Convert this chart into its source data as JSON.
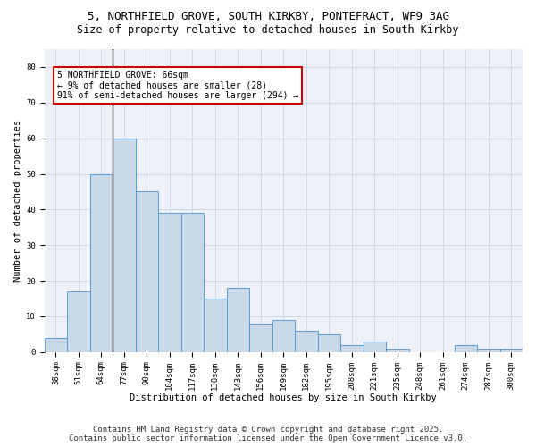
{
  "title1": "5, NORTHFIELD GROVE, SOUTH KIRKBY, PONTEFRACT, WF9 3AG",
  "title2": "Size of property relative to detached houses in South Kirkby",
  "xlabel": "Distribution of detached houses by size in South Kirkby",
  "ylabel": "Number of detached properties",
  "categories": [
    "38sqm",
    "51sqm",
    "64sqm",
    "77sqm",
    "90sqm",
    "104sqm",
    "117sqm",
    "130sqm",
    "143sqm",
    "156sqm",
    "169sqm",
    "182sqm",
    "195sqm",
    "208sqm",
    "221sqm",
    "235sqm",
    "248sqm",
    "261sqm",
    "274sqm",
    "287sqm",
    "300sqm"
  ],
  "values": [
    4,
    17,
    50,
    60,
    45,
    39,
    39,
    15,
    18,
    8,
    9,
    6,
    5,
    2,
    3,
    1,
    0,
    0,
    2,
    1,
    1
  ],
  "bar_color": "#c9d9e8",
  "bar_edge_color": "#5b9bd5",
  "vline_x": 2.5,
  "annotation_text": "5 NORTHFIELD GROVE: 66sqm\n← 9% of detached houses are smaller (28)\n91% of semi-detached houses are larger (294) →",
  "annotation_box_color": "#ffffff",
  "annotation_box_edge": "#cc0000",
  "ylim": [
    0,
    85
  ],
  "yticks": [
    0,
    10,
    20,
    30,
    40,
    50,
    60,
    70,
    80
  ],
  "grid_color": "#d0d8e8",
  "bg_color": "#eef2f8",
  "footer": "Contains HM Land Registry data © Crown copyright and database right 2025.\nContains public sector information licensed under the Open Government Licence v3.0.",
  "title_fontsize": 9,
  "subtitle_fontsize": 8.5,
  "axis_label_fontsize": 7.5,
  "tick_fontsize": 6.5,
  "annotation_fontsize": 7,
  "footer_fontsize": 6.5
}
